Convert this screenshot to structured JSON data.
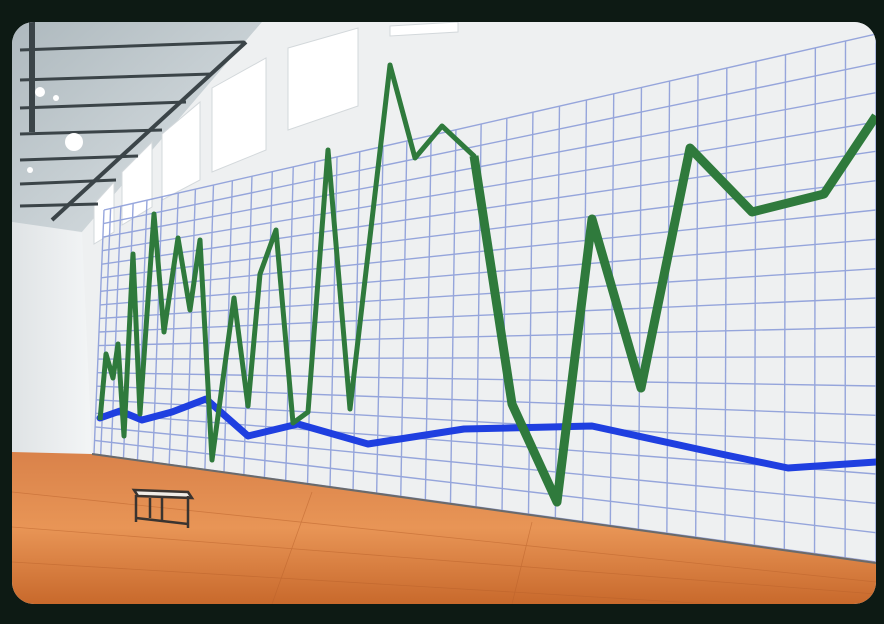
{
  "scene": {
    "subject": "",
    "colors": {
      "frame": "#0d1a14",
      "wall": "#eef0f1",
      "grid": "#7f93d6",
      "green_line": "#2f7a3c",
      "blue_line": "#1f3fe0",
      "floor_light": "#e08a4a",
      "floor_dark": "#b85a23",
      "ceiling": "#c9d2d6"
    }
  }
}
